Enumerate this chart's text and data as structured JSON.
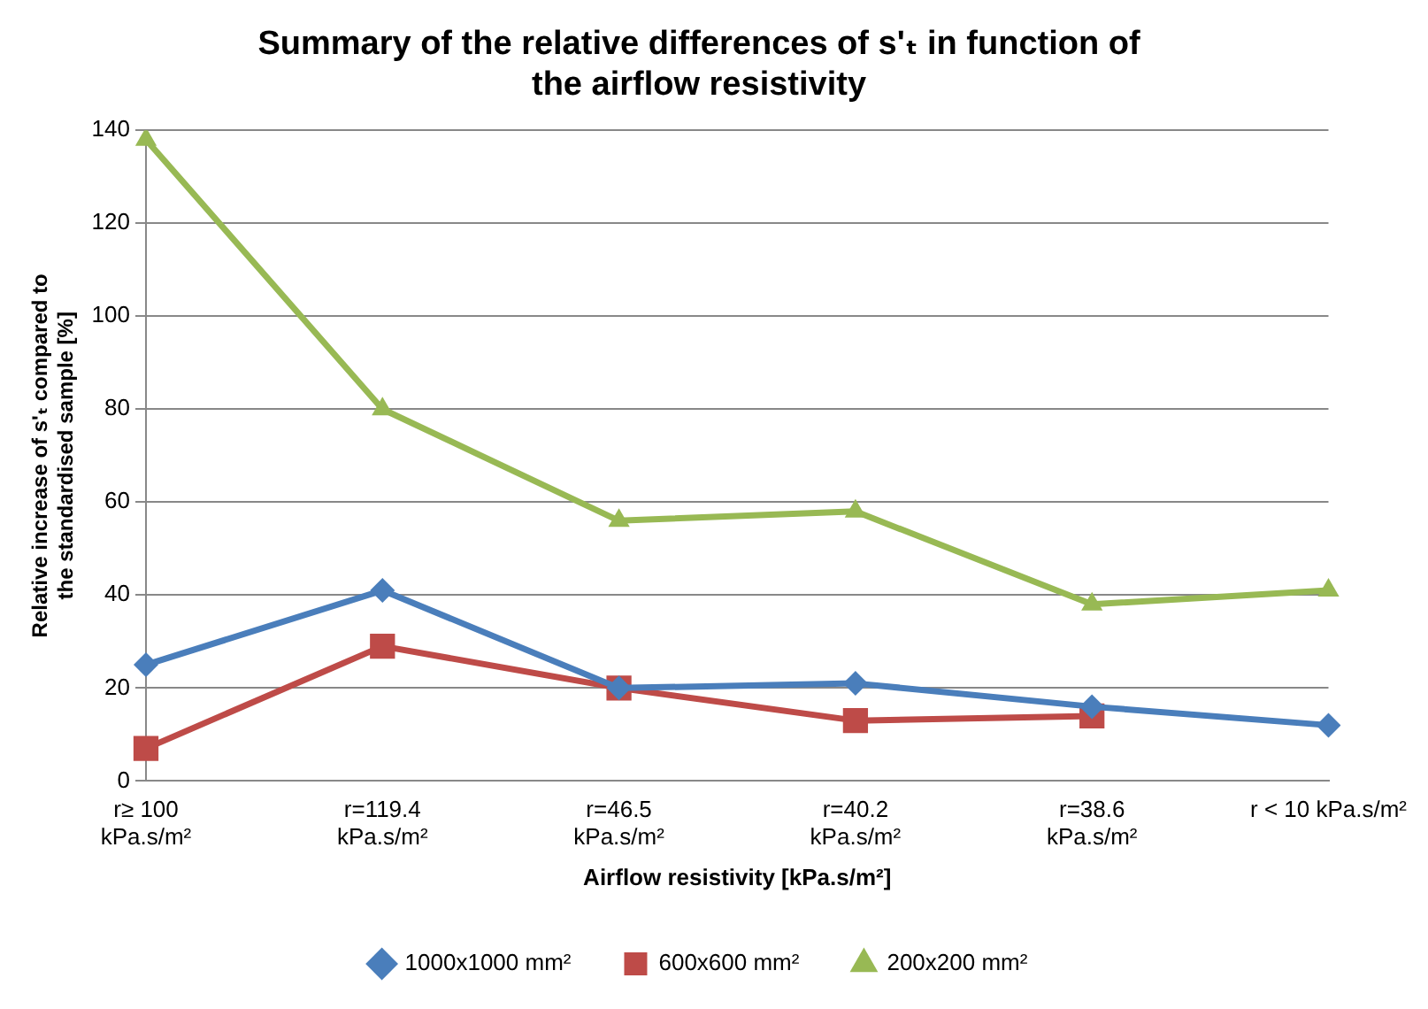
{
  "chart_data": {
    "type": "line",
    "title": "Summary of the relative differences of s'ₜ in function of\nthe airflow resistivity",
    "xlabel": "Airflow resistivity [kPa.s/m²]",
    "ylabel": "Relative increase of s'ₜ compared to\nthe standardised sample [%]",
    "categories": [
      "r≥ 100\nkPa.s/m²",
      "r=119.4\nkPa.s/m²",
      "r=46.5\nkPa.s/m²",
      "r=40.2\nkPa.s/m²",
      "r=38.6\nkPa.s/m²",
      "r < 10 kPa.s/m²"
    ],
    "series": [
      {
        "name": "1000x1000 mm²",
        "color": "#4a7ebb",
        "marker": "diamond",
        "values": [
          25,
          41,
          20,
          21,
          16,
          12
        ]
      },
      {
        "name": "600x600 mm²",
        "color": "#be4b48",
        "marker": "square",
        "values": [
          7,
          29,
          20,
          13,
          14,
          null
        ]
      },
      {
        "name": "200x200 mm²",
        "color": "#98b954",
        "marker": "triangle",
        "values": [
          138,
          80,
          56,
          58,
          38,
          41
        ]
      }
    ],
    "ylim": [
      0,
      140
    ],
    "yticks": [
      0,
      20,
      40,
      60,
      80,
      100,
      120,
      140
    ],
    "grid": "y",
    "legend": "bottom",
    "line_style": "solid"
  }
}
